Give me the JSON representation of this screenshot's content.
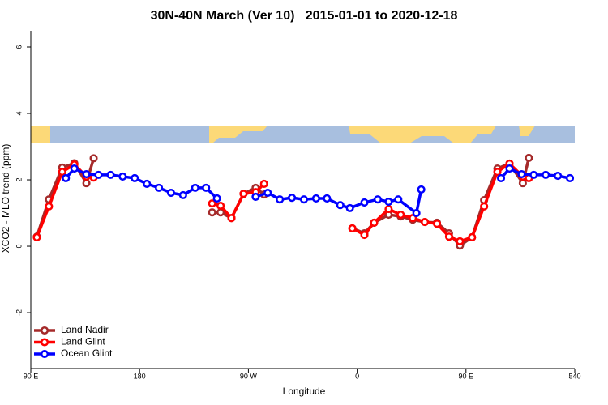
{
  "chart_data": {
    "type": "line",
    "title": "30N-40N March (Ver 10)   2015-01-01 to 2020-12-18",
    "x_label": "Longitude",
    "y_label": "XCO2 - MLO trend (ppm)",
    "xlim": [
      90,
      540
    ],
    "ylim": [
      -3.65,
      6.5
    ],
    "xticks": [
      {
        "value": 90,
        "label": "90 E"
      },
      180,
      {
        "value": 270,
        "label": "90 W"
      },
      {
        "value": 360,
        "label": "0"
      },
      {
        "value": 450,
        "label": "90 E"
      },
      540
    ],
    "yticks": [
      -2,
      0,
      2,
      4,
      6
    ],
    "legend": "bottom-left",
    "series": [
      {
        "name": "Land Nadir",
        "color": "#a52a2a",
        "x": [
          95,
          105,
          116,
          126,
          136,
          142,
          null,
          240,
          247,
          256,
          266,
          276,
          283,
          null,
          356,
          366,
          374,
          386,
          396,
          406,
          416,
          426,
          436,
          445,
          455,
          465,
          476,
          486,
          497,
          502
        ],
        "values": [
          0.29,
          1.41,
          2.37,
          2.5,
          1.9,
          2.65,
          null,
          1.02,
          1.02,
          0.85,
          1.58,
          1.76,
          1.56,
          null,
          0.54,
          0.39,
          0.71,
          0.95,
          0.9,
          0.8,
          0.73,
          0.71,
          0.39,
          0.02,
          0.27,
          1.39,
          2.34,
          2.49,
          1.9,
          2.66
        ]
      },
      {
        "name": "Land Glint",
        "color": "#ff0000",
        "x": [
          95,
          105,
          116,
          126,
          136,
          142,
          null,
          240,
          247,
          256,
          266,
          276,
          283,
          null,
          356,
          366,
          374,
          386,
          396,
          406,
          416,
          426,
          436,
          445,
          455,
          465,
          476,
          486,
          497,
          502
        ],
        "values": [
          0.27,
          1.2,
          2.24,
          2.46,
          2.1,
          2.07,
          null,
          1.29,
          1.22,
          0.85,
          1.58,
          1.63,
          1.88,
          null,
          0.54,
          0.34,
          0.71,
          1.12,
          0.95,
          0.85,
          0.73,
          0.68,
          0.29,
          0.15,
          0.27,
          1.2,
          2.24,
          2.49,
          2.1,
          2.05
        ]
      },
      {
        "name": "Ocean Glint",
        "color": "#0000ff",
        "x": [
          119,
          126,
          136,
          146,
          156,
          166,
          176,
          186,
          196,
          206,
          216,
          226,
          235,
          244,
          null,
          276,
          286,
          296,
          306,
          316,
          326,
          335,
          346,
          354,
          366,
          377,
          386,
          394,
          409,
          413,
          null,
          479,
          486,
          496,
          506,
          516,
          526,
          536
        ],
        "values": [
          2.05,
          2.34,
          2.17,
          2.15,
          2.15,
          2.1,
          2.05,
          1.88,
          1.76,
          1.61,
          1.54,
          1.76,
          1.76,
          1.44,
          null,
          1.49,
          1.61,
          1.41,
          1.46,
          1.41,
          1.44,
          1.44,
          1.24,
          1.15,
          1.32,
          1.41,
          1.34,
          1.41,
          1.0,
          1.71,
          null,
          2.05,
          2.34,
          2.17,
          2.15,
          2.15,
          2.12,
          2.05
        ]
      }
    ]
  }
}
